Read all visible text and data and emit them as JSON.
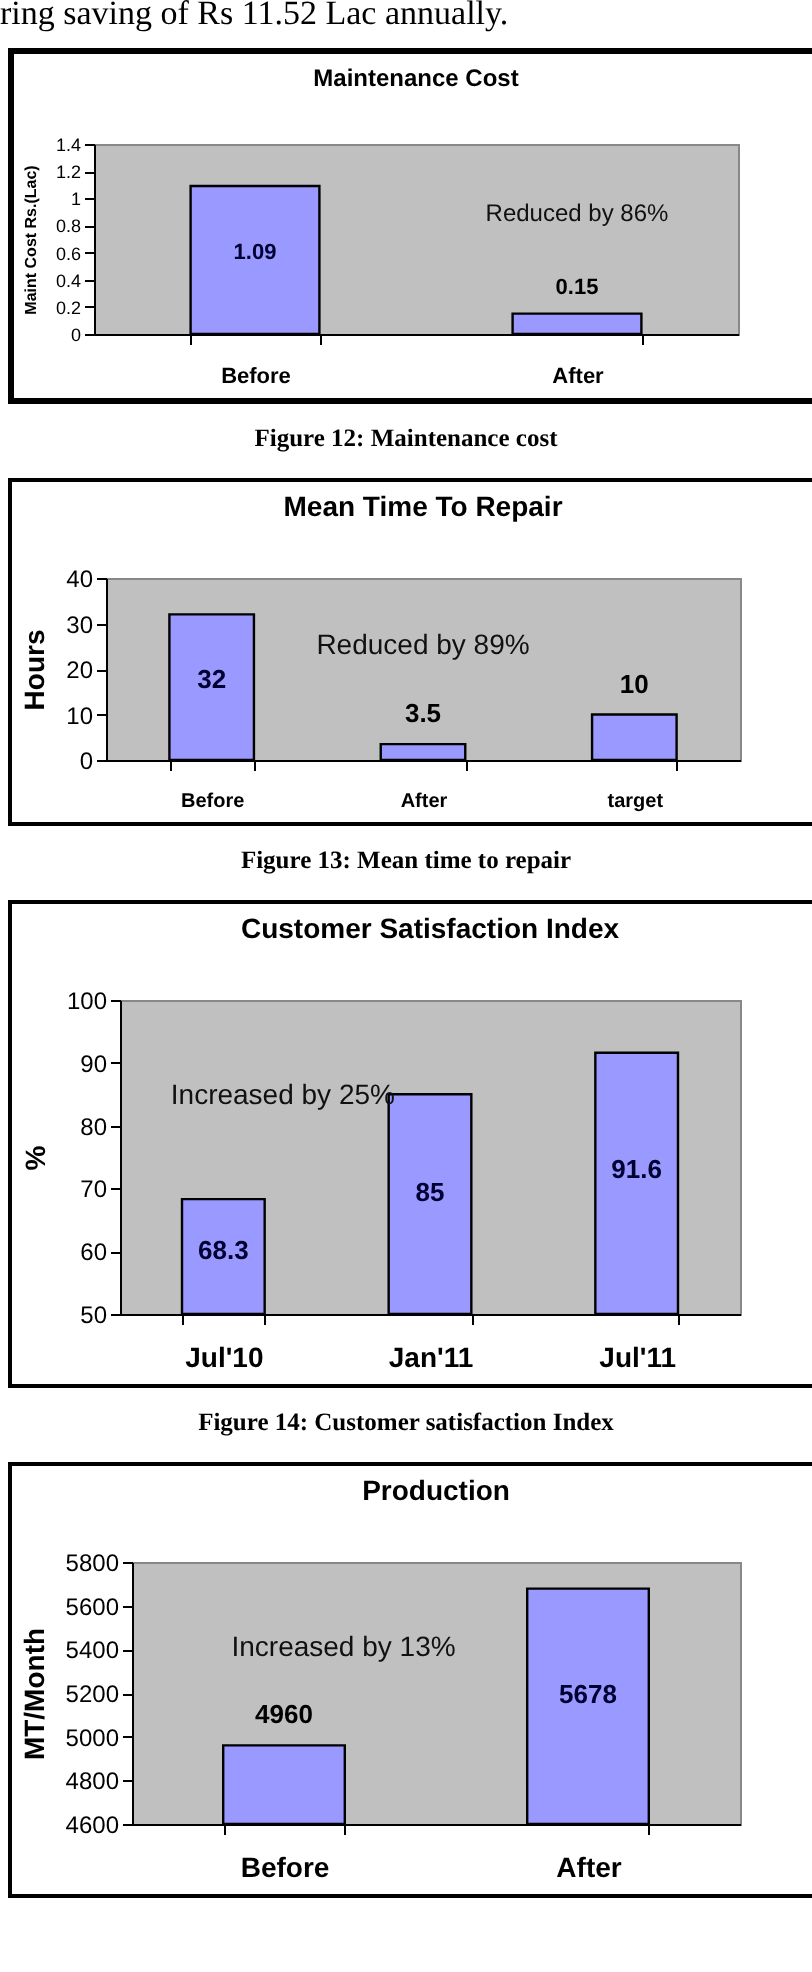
{
  "chart_data": [
    {
      "type": "bar",
      "title": "Maintenance Cost",
      "ylabel": "Maint Cost Rs.(Lac)",
      "categories": [
        "Before",
        "After"
      ],
      "values": [
        1.09,
        0.15
      ],
      "color": "#9999ff",
      "ylim": [
        0,
        1.4
      ],
      "yticks": [
        0,
        0.2,
        0.4,
        0.6,
        0.8,
        1,
        1.2,
        1.4
      ],
      "grid": false,
      "data_labels": true,
      "annotations": [
        "Reduced by 86%",
        "Figure 12: Maintenance cost",
        "ring saving of Rs 11.52 Lac annually."
      ]
    },
    {
      "type": "bar",
      "title": "Mean Time To Repair",
      "ylabel": "Hours",
      "categories": [
        "Before",
        "After",
        "target"
      ],
      "values": [
        32,
        3.5,
        10
      ],
      "color": "#9999ff",
      "ylim": [
        0,
        40
      ],
      "yticks": [
        0,
        10,
        20,
        30,
        40
      ],
      "grid": false,
      "data_labels": true,
      "annotations": [
        "Reduced by 89%",
        "Figure 13: Mean time to repair"
      ]
    },
    {
      "type": "bar",
      "title": "Customer Satisfaction Index",
      "ylabel": "%",
      "categories": [
        "Jul'10",
        "Jan'11",
        "Jul'11"
      ],
      "values": [
        68.3,
        85,
        91.6
      ],
      "color": "#9999ff",
      "ylim": [
        50,
        100
      ],
      "yticks": [
        50,
        60,
        70,
        80,
        90,
        100
      ],
      "grid": false,
      "data_labels": true,
      "annotations": [
        "Increased by 25%",
        "Figure 14: Customer satisfaction Index"
      ]
    },
    {
      "type": "bar",
      "title": "Production",
      "ylabel": "MT/Month",
      "categories": [
        "Before",
        "After"
      ],
      "values": [
        4960,
        5678
      ],
      "color": "#9999ff",
      "ylim": [
        4600,
        5800
      ],
      "yticks": [
        4600,
        4800,
        5000,
        5200,
        5400,
        5600,
        5800
      ],
      "grid": false,
      "data_labels": true,
      "annotations": [
        "Increased by 13%"
      ]
    }
  ]
}
